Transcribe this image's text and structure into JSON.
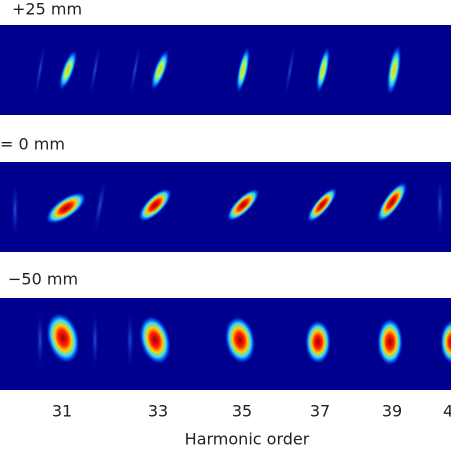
{
  "panels": [
    {
      "label": "+25 mm"
    },
    {
      "label": "= 0 mm"
    },
    {
      "label": "−50 mm"
    }
  ],
  "x_axis": {
    "ticks": [
      "31",
      "33",
      "35",
      "37",
      "39",
      "4"
    ],
    "label": "Harmonic order"
  }
}
